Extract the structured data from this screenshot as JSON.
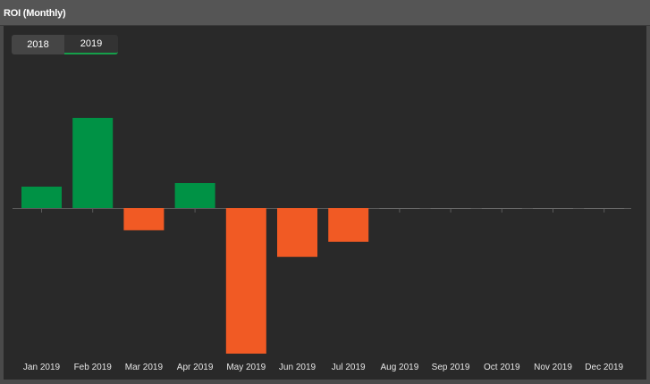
{
  "header": {
    "title": "ROI (Monthly)"
  },
  "tabs": [
    {
      "label": "2018",
      "active": false
    },
    {
      "label": "2019",
      "active": true
    }
  ],
  "colors": {
    "positive": "#009245",
    "negative": "#f15a24",
    "baseline": "#5a5a5a"
  },
  "chart_data": {
    "type": "bar",
    "categories": [
      "Jan 2019",
      "Feb 2019",
      "Mar 2019",
      "Apr 2019",
      "May 2019",
      "Jun 2019",
      "Jul 2019",
      "Aug 2019",
      "Sep 2019",
      "Oct 2019",
      "Nov 2019",
      "Dec 2019"
    ],
    "values": [
      2.4,
      10.1,
      -2.5,
      2.8,
      -16.4,
      -5.5,
      -3.8,
      0,
      0,
      0,
      0,
      0
    ],
    "ylim": [
      -16.4,
      10.1
    ],
    "grid": false,
    "title": "",
    "xlabel": "",
    "ylabel": ""
  }
}
